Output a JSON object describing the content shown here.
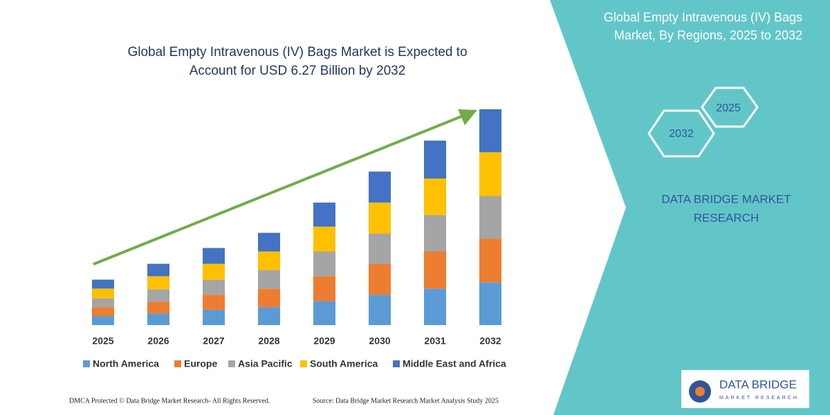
{
  "chart_data": {
    "type": "stacked-bar",
    "title": "Global Empty Intravenous (IV) Bags Market is Expected to",
    "subtitle": "Account for USD 6.27 Billion by 2032",
    "categories": [
      "2025",
      "2026",
      "2027",
      "2028",
      "2029",
      "2030",
      "2031",
      "2032"
    ],
    "series": [
      {
        "name": "North America",
        "color": "#5b9bd5",
        "values": [
          0.26,
          0.34,
          0.44,
          0.52,
          0.7,
          0.88,
          1.06,
          1.24
        ]
      },
      {
        "name": "Europe",
        "color": "#ed7d31",
        "values": [
          0.26,
          0.34,
          0.44,
          0.54,
          0.72,
          0.9,
          1.08,
          1.27
        ]
      },
      {
        "name": "Asia Pacific",
        "color": "#a5a5a5",
        "values": [
          0.26,
          0.36,
          0.44,
          0.54,
          0.72,
          0.88,
          1.06,
          1.24
        ]
      },
      {
        "name": "South America",
        "color": "#ffc000",
        "values": [
          0.28,
          0.38,
          0.46,
          0.54,
          0.72,
          0.9,
          1.06,
          1.27
        ]
      },
      {
        "name": "Middle East and Africa",
        "color": "#4472c4",
        "values": [
          0.26,
          0.36,
          0.46,
          0.54,
          0.7,
          0.9,
          1.1,
          1.25
        ]
      }
    ]
  },
  "panel": {
    "title_line1": "Global Empty Intravenous (IV) Bags",
    "title_line2": "Market, By Regions, 2025 to 2032",
    "hex_start": "2025",
    "hex_end": "2032",
    "brand_line1": "DATA BRIDGE MARKET",
    "brand_line2": "RESEARCH"
  },
  "footer": {
    "copyright": "DMCA Protected © Data Bridge Market Research-  All Rights Reserved.",
    "source": "Source: Data Bridge Market Research  Market Analysis Study 2025"
  },
  "logo": {
    "name": "DATA BRIDGE",
    "tagline": "MARKET RESEARCH"
  }
}
